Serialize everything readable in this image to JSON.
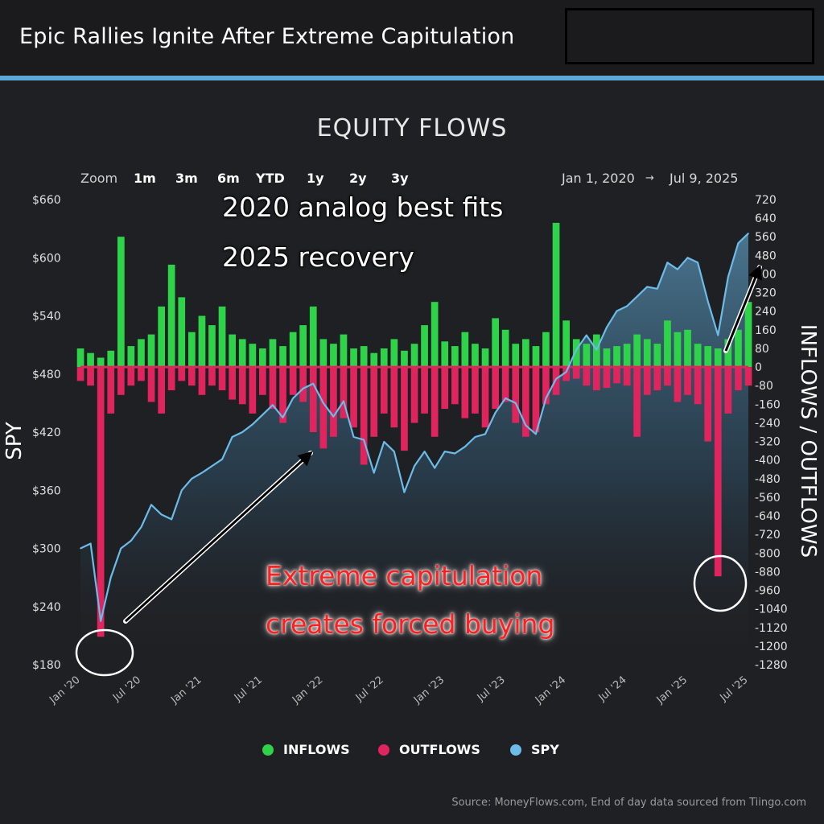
{
  "header": {
    "title": "Epic Rallies Ignite After Extreme Capitulation"
  },
  "toolbar": {
    "zoom_label": "Zoom",
    "zoom_options": [
      "1m",
      "3m",
      "6m",
      "YTD",
      "1y",
      "2y",
      "3y"
    ],
    "range_start": "Jan 1, 2020",
    "range_arrow": "→",
    "range_end": "Jul 9, 2025"
  },
  "annotations": {
    "top_line1": "2020 analog best fits",
    "top_line2": "2025 recovery",
    "mid_line1": "Extreme capitulation",
    "mid_line2": "creates forced buying"
  },
  "legend": {
    "inflows": "INFLOWS",
    "outflows": "OUTFLOWS",
    "spy": "SPY"
  },
  "source": "Source: MoneyFlows.com, End of day data sourced from Tiingo.com",
  "colors": {
    "inflows": "#2fd34a",
    "outflows": "#e0245e",
    "spy": "#6cbbe8",
    "background": "#1f2023",
    "header_rule": "#5ba9d8"
  },
  "chart_data": {
    "type": "line",
    "title": "EQUITY FLOWS",
    "ylabel": "SPY",
    "y2label": "INFLOWS / OUTFLOWS",
    "ylim": [
      180,
      660
    ],
    "y2lim": [
      -1280,
      720
    ],
    "y_ticks": [
      "$660",
      "$600",
      "$540",
      "$480",
      "$420",
      "$360",
      "$300",
      "$240",
      "$180"
    ],
    "y2_ticks": [
      720,
      640,
      560,
      480,
      400,
      320,
      240,
      160,
      80,
      0,
      -80,
      -160,
      -240,
      -320,
      -400,
      -480,
      -560,
      -640,
      -720,
      -800,
      -880,
      -960,
      -1040,
      -1120,
      -1200,
      -1280
    ],
    "x_ticks": [
      "Jan '20",
      "Jul '20",
      "Jan '21",
      "Jul '21",
      "Jan '22",
      "Jul '22",
      "Jan '23",
      "Jul '23",
      "Jan '24",
      "Jul '24",
      "Jan '25",
      "Jul '25"
    ],
    "legend_position": "bottom",
    "grid": false,
    "series": [
      {
        "name": "SPY",
        "x": [
          "2020-01",
          "2020-02",
          "2020-03",
          "2020-04",
          "2020-05",
          "2020-06",
          "2020-07",
          "2020-08",
          "2020-09",
          "2020-10",
          "2020-11",
          "2020-12",
          "2021-01",
          "2021-02",
          "2021-03",
          "2021-04",
          "2021-05",
          "2021-06",
          "2021-07",
          "2021-08",
          "2021-09",
          "2021-10",
          "2021-11",
          "2021-12",
          "2022-01",
          "2022-02",
          "2022-03",
          "2022-04",
          "2022-05",
          "2022-06",
          "2022-07",
          "2022-08",
          "2022-09",
          "2022-10",
          "2022-11",
          "2022-12",
          "2023-01",
          "2023-02",
          "2023-03",
          "2023-04",
          "2023-05",
          "2023-06",
          "2023-07",
          "2023-08",
          "2023-09",
          "2023-10",
          "2023-11",
          "2023-12",
          "2024-01",
          "2024-02",
          "2024-03",
          "2024-04",
          "2024-05",
          "2024-06",
          "2024-07",
          "2024-08",
          "2024-09",
          "2024-10",
          "2024-11",
          "2024-12",
          "2025-01",
          "2025-02",
          "2025-03",
          "2025-04",
          "2025-05",
          "2025-06",
          "2025-07"
        ],
        "values": [
          300,
          305,
          225,
          270,
          300,
          308,
          322,
          345,
          335,
          330,
          360,
          372,
          378,
          385,
          392,
          415,
          420,
          428,
          438,
          448,
          435,
          455,
          465,
          470,
          450,
          436,
          452,
          415,
          412,
          378,
          410,
          400,
          358,
          385,
          400,
          383,
          400,
          398,
          405,
          415,
          418,
          440,
          455,
          450,
          427,
          418,
          455,
          475,
          482,
          505,
          520,
          505,
          528,
          545,
          550,
          560,
          570,
          568,
          595,
          588,
          600,
          595,
          555,
          520,
          580,
          615,
          625
        ]
      },
      {
        "name": "INFLOWS",
        "values": [
          80,
          60,
          40,
          70,
          560,
          90,
          120,
          140,
          260,
          440,
          300,
          150,
          220,
          180,
          260,
          140,
          120,
          100,
          80,
          120,
          90,
          150,
          180,
          260,
          120,
          100,
          140,
          80,
          90,
          60,
          80,
          120,
          70,
          100,
          180,
          280,
          110,
          90,
          150,
          100,
          80,
          210,
          160,
          100,
          120,
          90,
          150,
          620,
          200,
          120,
          100,
          140,
          80,
          90,
          100,
          140,
          120,
          100,
          200,
          150,
          160,
          100,
          90,
          80,
          120,
          160,
          280
        ]
      },
      {
        "name": "OUTFLOWS",
        "values": [
          -60,
          -80,
          -1160,
          -200,
          -120,
          -80,
          -60,
          -150,
          -200,
          -100,
          -60,
          -80,
          -120,
          -80,
          -100,
          -140,
          -160,
          -200,
          -120,
          -180,
          -240,
          -120,
          -150,
          -280,
          -350,
          -300,
          -220,
          -260,
          -420,
          -300,
          -200,
          -260,
          -360,
          -240,
          -200,
          -300,
          -180,
          -160,
          -220,
          -200,
          -260,
          -180,
          -150,
          -240,
          -300,
          -280,
          -160,
          -120,
          -60,
          -50,
          -80,
          -100,
          -90,
          -70,
          -80,
          -300,
          -120,
          -100,
          -80,
          -150,
          -120,
          -160,
          -320,
          -900,
          -200,
          -100,
          -80
        ]
      }
    ]
  }
}
